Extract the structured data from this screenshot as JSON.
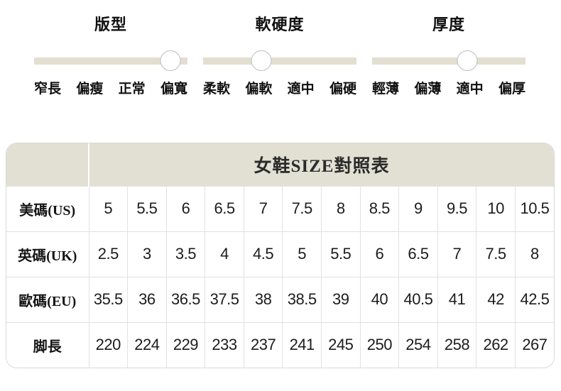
{
  "sliders": [
    {
      "title": "版型",
      "labels": [
        "窄長",
        "偏瘦",
        "正常",
        "偏寬"
      ],
      "knob_percent": 89,
      "selected_label": "偏寬"
    },
    {
      "title": "軟硬度",
      "labels": [
        "柔軟",
        "偏軟",
        "適中",
        "偏硬"
      ],
      "knob_percent": 38,
      "selected_label": "偏軟"
    },
    {
      "title": "厚度",
      "labels": [
        "輕薄",
        "偏薄",
        "適中",
        "偏厚"
      ],
      "knob_percent": 62,
      "selected_label": "適中"
    }
  ],
  "size_table": {
    "title": "女鞋SIZE對照表",
    "rows": [
      {
        "header": "美碼(US)",
        "values": [
          "5",
          "5.5",
          "6",
          "6.5",
          "7",
          "7.5",
          "8",
          "8.5",
          "9",
          "9.5",
          "10",
          "10.5"
        ]
      },
      {
        "header": "英碼(UK)",
        "values": [
          "2.5",
          "3",
          "3.5",
          "4",
          "4.5",
          "5",
          "5.5",
          "6",
          "6.5",
          "7",
          "7.5",
          "8"
        ]
      },
      {
        "header": "歐碼(EU)",
        "values": [
          "35.5",
          "36",
          "36.5",
          "37.5",
          "38",
          "38.5",
          "39",
          "40",
          "40.5",
          "41",
          "42",
          "42.5"
        ]
      },
      {
        "header": "脚長",
        "values": [
          "220",
          "224",
          "229",
          "233",
          "237",
          "241",
          "245",
          "250",
          "254",
          "258",
          "262",
          "267"
        ]
      }
    ]
  },
  "colors": {
    "accent_beige": "#e2e0d3",
    "track_beige": "#e2dfd1",
    "grid_border": "#e2e2e2",
    "text": "#1c1c1c"
  }
}
